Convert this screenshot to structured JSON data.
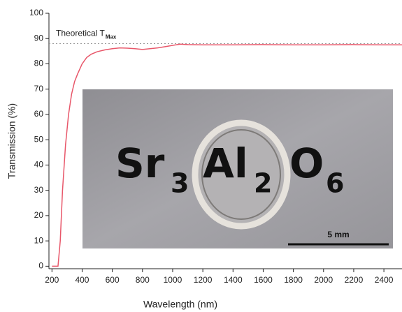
{
  "chart_data": {
    "type": "line",
    "x_label": "Wavelength (nm)",
    "y_label": "Transmission (%)",
    "x": [
      200,
      240,
      255,
      270,
      290,
      310,
      330,
      350,
      370,
      400,
      430,
      460,
      500,
      550,
      600,
      650,
      700,
      750,
      800,
      850,
      900,
      950,
      1000,
      1050,
      1100,
      1200,
      1400,
      1600,
      1800,
      2000,
      2200,
      2400,
      2520
    ],
    "series": [
      {
        "color": "#e8576a",
        "values": [
          0,
          0,
          10,
          30,
          48,
          60,
          68,
          73,
          76,
          80,
          82.5,
          83.8,
          84.8,
          85.5,
          86,
          86.3,
          86.2,
          86,
          85.7,
          86,
          86.3,
          86.8,
          87.3,
          87.8,
          87.6,
          87.5,
          87.5,
          87.6,
          87.5,
          87.5,
          87.6,
          87.5,
          87.5
        ]
      }
    ],
    "xlim": [
      180,
      2520
    ],
    "ylim": [
      -1,
      100
    ],
    "xticks": [
      200,
      400,
      600,
      800,
      1000,
      1200,
      1400,
      1600,
      1800,
      2000,
      2200,
      2400
    ],
    "yticks": [
      0,
      10,
      20,
      30,
      40,
      50,
      60,
      70,
      80,
      90,
      100
    ],
    "reference_line": {
      "value": 88,
      "label": "Theoretical T",
      "subscript": "Max"
    },
    "inset": {
      "labels": [
        "Sr",
        "3",
        "Al",
        "2",
        "O",
        "6"
      ],
      "scale_bar": "5 mm"
    }
  }
}
